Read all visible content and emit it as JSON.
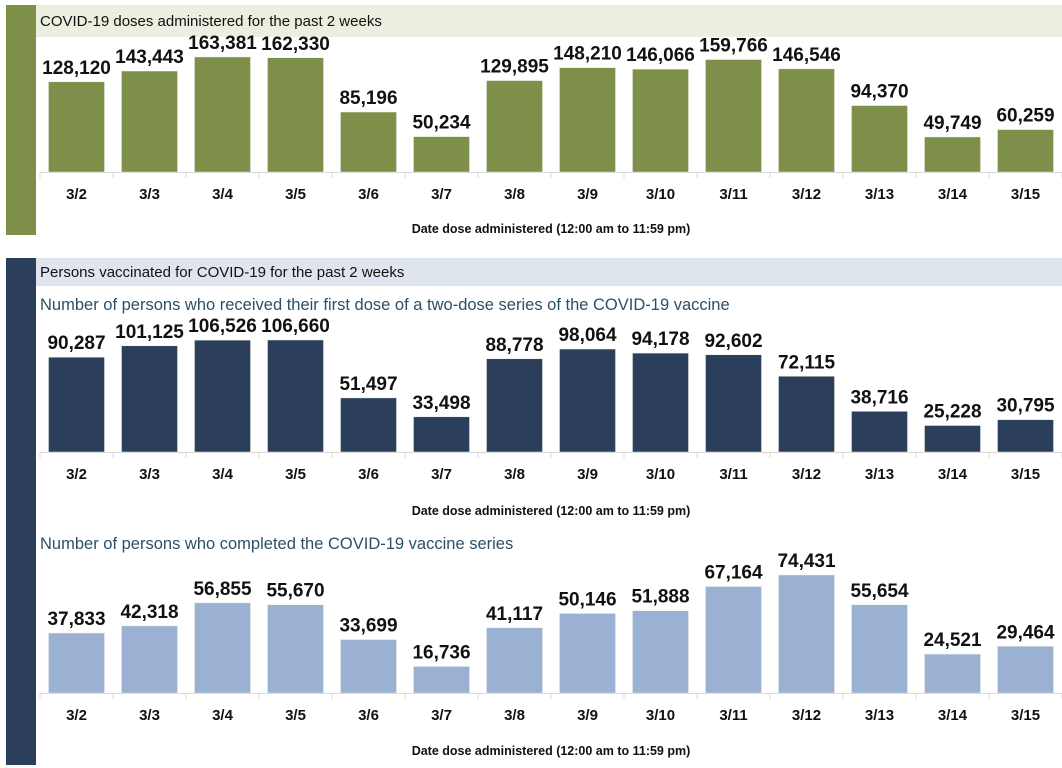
{
  "colors": {
    "doses_bar": "#7d8f49",
    "doses_header_bg": "#ebefe0",
    "persons_strip": "#2b3e5c",
    "persons_header_bg": "#dfe5ef",
    "first_dose_bar": "#2b3e5c",
    "completed_bar": "#9ab1d3",
    "subtitle_text": "#2b5068"
  },
  "section_doses": {
    "header": "COVID-19 doses administered for the past 2 weeks"
  },
  "section_persons": {
    "header": "Persons vaccinated for COVID-19 for the past 2 weeks",
    "first_dose_title": "Number of persons who received their first dose of a two-dose series of the COVID-19 vaccine",
    "completed_title": "Number of persons who completed the COVID-19 vaccine series"
  },
  "chart_data": [
    {
      "type": "bar",
      "title": "COVID-19 doses administered for the past 2 weeks",
      "xlabel": "Date dose administered (12:00 am to 11:59 pm)",
      "ylabel": "",
      "categories": [
        "3/2",
        "3/3",
        "3/4",
        "3/5",
        "3/6",
        "3/7",
        "3/8",
        "3/9",
        "3/10",
        "3/11",
        "3/12",
        "3/13",
        "3/14",
        "3/15"
      ],
      "values": [
        128120,
        143443,
        163381,
        162330,
        85196,
        50234,
        129895,
        148210,
        146066,
        159766,
        146546,
        94370,
        49749,
        60259
      ],
      "labels": [
        "128,120",
        "143,443",
        "163,381",
        "162,330",
        "85,196",
        "50,234",
        "129,895",
        "148,210",
        "146,066",
        "159,766",
        "146,546",
        "94,370",
        "49,749",
        "60,259"
      ],
      "ylim": [
        0,
        180000
      ],
      "grid": false,
      "legend": "none"
    },
    {
      "type": "bar",
      "title": "Number of persons who received their first dose of a two-dose series of the COVID-19 vaccine",
      "xlabel": "Date dose administered (12:00 am to 11:59 pm)",
      "ylabel": "",
      "categories": [
        "3/2",
        "3/3",
        "3/4",
        "3/5",
        "3/6",
        "3/7",
        "3/8",
        "3/9",
        "3/10",
        "3/11",
        "3/12",
        "3/13",
        "3/14",
        "3/15"
      ],
      "values": [
        90287,
        101125,
        106526,
        106660,
        51497,
        33498,
        88778,
        98064,
        94178,
        92602,
        72115,
        38716,
        25228,
        30795
      ],
      "labels": [
        "90,287",
        "101,125",
        "106,526",
        "106,660",
        "51,497",
        "33,498",
        "88,778",
        "98,064",
        "94,178",
        "92,602",
        "72,115",
        "38,716",
        "25,228",
        "30,795"
      ],
      "ylim": [
        0,
        140000
      ],
      "grid": false,
      "legend": "none"
    },
    {
      "type": "bar",
      "title": "Number of persons who completed the COVID-19 vaccine series",
      "xlabel": "Date dose administered (12:00 am to 11:59 pm)",
      "ylabel": "",
      "categories": [
        "3/2",
        "3/3",
        "3/4",
        "3/5",
        "3/6",
        "3/7",
        "3/8",
        "3/9",
        "3/10",
        "3/11",
        "3/12",
        "3/13",
        "3/14",
        "3/15"
      ],
      "values": [
        37833,
        42318,
        56855,
        55670,
        33699,
        16736,
        41117,
        50146,
        51888,
        67164,
        74431,
        55654,
        24521,
        29464
      ],
      "labels": [
        "37,833",
        "42,318",
        "56,855",
        "55,670",
        "33,699",
        "16,736",
        "41,117",
        "50,146",
        "51,888",
        "67,164",
        "74,431",
        "55,654",
        "24,521",
        "29,464"
      ],
      "ylim": [
        0,
        95000
      ],
      "grid": false,
      "legend": "none"
    }
  ]
}
